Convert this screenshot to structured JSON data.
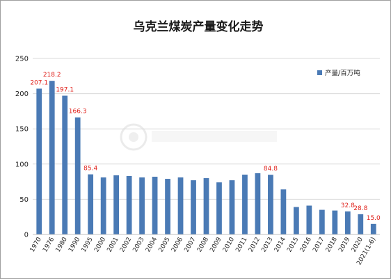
{
  "chart_data": {
    "type": "bar",
    "title": "乌克兰煤炭产量变化走势",
    "legend": {
      "label": "产量/百万吨",
      "position": "top-right"
    },
    "series_color": "#4a7ab5",
    "label_color": "#e0211b",
    "categories": [
      "1970",
      "1976",
      "1980",
      "1990",
      "1995",
      "2000",
      "2001",
      "2002",
      "2003",
      "2004",
      "2005",
      "2006",
      "2007",
      "2008",
      "2009",
      "2010",
      "2011",
      "2012",
      "2013",
      "2014",
      "2015",
      "2016",
      "2017",
      "2018",
      "2019",
      "2020",
      "2021(1-6)"
    ],
    "series": [
      {
        "name": "产量/百万吨",
        "values": [
          207.1,
          218.2,
          197.1,
          166.3,
          85.4,
          81,
          84,
          83,
          81,
          82,
          79,
          81,
          77,
          80,
          74,
          77,
          85,
          87,
          84.8,
          64,
          39,
          41,
          35,
          34,
          32.8,
          28.8,
          15.0
        ]
      }
    ],
    "data_labels": [
      {
        "index": 0,
        "text": "207.1"
      },
      {
        "index": 1,
        "text": "218.2"
      },
      {
        "index": 2,
        "text": "197.1"
      },
      {
        "index": 3,
        "text": "166.3"
      },
      {
        "index": 4,
        "text": "85.4"
      },
      {
        "index": 18,
        "text": "84.8"
      },
      {
        "index": 24,
        "text": "32.8"
      },
      {
        "index": 25,
        "text": "28.8"
      },
      {
        "index": 26,
        "text": "15.0"
      }
    ],
    "ylim": [
      0,
      250
    ],
    "yticks": [
      0,
      50,
      100,
      150,
      200,
      250
    ],
    "grid": "horizontal"
  }
}
